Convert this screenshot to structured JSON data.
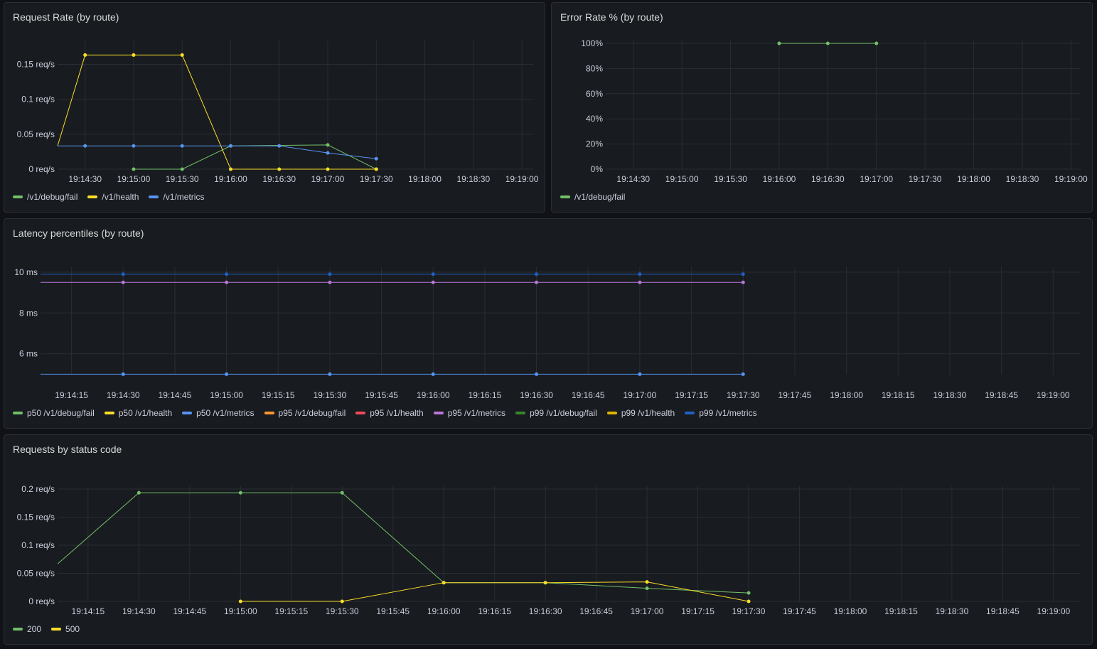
{
  "panels": [
    {
      "id": "req-rate",
      "title": "Request Rate (by route)",
      "chart_data": {
        "type": "line",
        "title": "Request Rate (by route)",
        "x_ticks": [
          "19:14:30",
          "19:15:00",
          "19:15:30",
          "19:16:00",
          "19:16:30",
          "19:17:00",
          "19:17:30",
          "19:18:00",
          "19:18:30",
          "19:19:00"
        ],
        "xlim": [
          "19:14:13",
          "19:19:07"
        ],
        "y_ticks": [
          {
            "v": 0,
            "label": "0 req/s"
          },
          {
            "v": 0.05,
            "label": "0.05 req/s"
          },
          {
            "v": 0.1,
            "label": "0.1 req/s"
          },
          {
            "v": 0.15,
            "label": "0.15 req/s"
          }
        ],
        "ylim": [
          0,
          0.18
        ],
        "series": [
          {
            "name": "/v1/debug/fail",
            "color": "#73bf69",
            "points": [
              [
                "19:15:00",
                0
              ],
              [
                "19:15:30",
                0
              ],
              [
                "19:16:00",
                0.0333
              ],
              [
                "19:17:00",
                0.0347
              ],
              [
                "19:17:30",
                0
              ]
            ]
          },
          {
            "name": "/v1/health",
            "color": "#fade2a",
            "points": [
              [
                "19:14:13",
                0.0333
              ],
              [
                "19:14:30",
                0.1633
              ],
              [
                "19:15:00",
                0.1633
              ],
              [
                "19:15:30",
                0.1633
              ],
              [
                "19:16:00",
                0
              ],
              [
                "19:16:30",
                0
              ],
              [
                "19:17:00",
                0
              ],
              [
                "19:17:30",
                0
              ]
            ]
          },
          {
            "name": "/v1/metrics",
            "color": "#5794f2",
            "points": [
              [
                "19:14:13",
                0.0333
              ],
              [
                "19:14:30",
                0.0333
              ],
              [
                "19:15:00",
                0.0333
              ],
              [
                "19:15:30",
                0.0333
              ],
              [
                "19:16:00",
                0.0333
              ],
              [
                "19:16:30",
                0.0333
              ],
              [
                "19:17:00",
                0.0233
              ],
              [
                "19:17:30",
                0.015
              ]
            ]
          }
        ]
      }
    },
    {
      "id": "err-rate",
      "title": "Error Rate % (by route)",
      "chart_data": {
        "type": "line",
        "title": "Error Rate % (by route)",
        "x_ticks": [
          "19:14:30",
          "19:15:00",
          "19:15:30",
          "19:16:00",
          "19:16:30",
          "19:17:00",
          "19:17:30",
          "19:18:00",
          "19:18:30",
          "19:19:00"
        ],
        "xlim": [
          "19:14:13",
          "19:19:06"
        ],
        "y_ticks": [
          {
            "v": 0,
            "label": "0%"
          },
          {
            "v": 20,
            "label": "20%"
          },
          {
            "v": 40,
            "label": "40%"
          },
          {
            "v": 60,
            "label": "60%"
          },
          {
            "v": 80,
            "label": "80%"
          },
          {
            "v": 100,
            "label": "100%"
          }
        ],
        "ylim": [
          0,
          100
        ],
        "series": [
          {
            "name": "/v1/debug/fail",
            "color": "#73bf69",
            "points": [
              [
                "19:16:00",
                100
              ],
              [
                "19:16:30",
                100
              ],
              [
                "19:17:00",
                100
              ]
            ]
          }
        ]
      }
    },
    {
      "id": "latency",
      "title": "Latency percentiles (by route)",
      "chart_data": {
        "type": "line",
        "title": "Latency percentiles (by route)",
        "x_ticks": [
          "19:14:15",
          "19:14:30",
          "19:14:45",
          "19:15:00",
          "19:15:15",
          "19:15:30",
          "19:15:45",
          "19:16:00",
          "19:16:15",
          "19:16:30",
          "19:16:45",
          "19:17:00",
          "19:17:15",
          "19:17:30",
          "19:17:45",
          "19:18:00",
          "19:18:15",
          "19:18:30",
          "19:18:45",
          "19:19:00"
        ],
        "xlim": [
          "19:14:06",
          "19:19:08"
        ],
        "y_ticks": [
          {
            "v": 6,
            "label": "6 ms"
          },
          {
            "v": 8,
            "label": "8 ms"
          },
          {
            "v": 10,
            "label": "10 ms"
          }
        ],
        "ylim": [
          4.98,
          10.1
        ],
        "series": [
          {
            "name": "p50 /v1/debug/fail",
            "color": "#73bf69",
            "points": []
          },
          {
            "name": "p50 /v1/health",
            "color": "#fade2a",
            "points": []
          },
          {
            "name": "p50 /v1/metrics",
            "color": "#5794f2",
            "points": [
              [
                "19:14:06",
                5
              ],
              [
                "19:14:30",
                5
              ],
              [
                "19:15:00",
                5
              ],
              [
                "19:15:30",
                5
              ],
              [
                "19:16:00",
                5
              ],
              [
                "19:16:30",
                5
              ],
              [
                "19:17:00",
                5
              ],
              [
                "19:17:30",
                5
              ]
            ]
          },
          {
            "name": "p95 /v1/debug/fail",
            "color": "#ff9830",
            "points": []
          },
          {
            "name": "p95 /v1/health",
            "color": "#f2495c",
            "points": []
          },
          {
            "name": "p95 /v1/metrics",
            "color": "#b877d9",
            "points": [
              [
                "19:14:06",
                9.5
              ],
              [
                "19:14:30",
                9.5
              ],
              [
                "19:15:00",
                9.5
              ],
              [
                "19:15:30",
                9.5
              ],
              [
                "19:16:00",
                9.5
              ],
              [
                "19:16:30",
                9.5
              ],
              [
                "19:17:00",
                9.5
              ],
              [
                "19:17:30",
                9.5
              ]
            ]
          },
          {
            "name": "p99 /v1/debug/fail",
            "color": "#37872d",
            "points": []
          },
          {
            "name": "p99 /v1/health",
            "color": "#e0b400",
            "points": []
          },
          {
            "name": "p99 /v1/metrics",
            "color": "#1f60c4",
            "points": [
              [
                "19:14:06",
                9.9
              ],
              [
                "19:14:30",
                9.9
              ],
              [
                "19:15:00",
                9.9
              ],
              [
                "19:15:30",
                9.9
              ],
              [
                "19:16:00",
                9.9
              ],
              [
                "19:16:30",
                9.9
              ],
              [
                "19:17:00",
                9.9
              ],
              [
                "19:17:30",
                9.9
              ]
            ]
          }
        ]
      }
    },
    {
      "id": "status-code",
      "title": "Requests by status code",
      "chart_data": {
        "type": "line",
        "title": "Requests by status code",
        "x_ticks": [
          "19:14:15",
          "19:14:30",
          "19:14:45",
          "19:15:00",
          "19:15:15",
          "19:15:30",
          "19:15:45",
          "19:16:00",
          "19:16:15",
          "19:16:30",
          "19:16:45",
          "19:17:00",
          "19:17:15",
          "19:17:30",
          "19:17:45",
          "19:18:00",
          "19:18:15",
          "19:18:30",
          "19:18:45",
          "19:19:00"
        ],
        "xlim": [
          "19:14:06",
          "19:19:08"
        ],
        "y_ticks": [
          {
            "v": 0,
            "label": "0 req/s"
          },
          {
            "v": 0.05,
            "label": "0.05 req/s"
          },
          {
            "v": 0.1,
            "label": "0.1 req/s"
          },
          {
            "v": 0.15,
            "label": "0.15 req/s"
          },
          {
            "v": 0.2,
            "label": "0.2 req/s"
          }
        ],
        "ylim": [
          0,
          0.2
        ],
        "series": [
          {
            "name": "200",
            "color": "#73bf69",
            "points": [
              [
                "19:14:06",
                0.0667
              ],
              [
                "19:14:30",
                0.1933
              ],
              [
                "19:15:00",
                0.1933
              ],
              [
                "19:15:30",
                0.1933
              ],
              [
                "19:16:00",
                0.0333
              ],
              [
                "19:16:30",
                0.0333
              ],
              [
                "19:17:00",
                0.0233
              ],
              [
                "19:17:30",
                0.015
              ]
            ]
          },
          {
            "name": "500",
            "color": "#fade2a",
            "points": [
              [
                "19:15:00",
                0
              ],
              [
                "19:15:30",
                0
              ],
              [
                "19:16:00",
                0.0333
              ],
              [
                "19:16:30",
                0.0333
              ],
              [
                "19:17:00",
                0.0347
              ],
              [
                "19:17:30",
                0
              ]
            ]
          }
        ]
      }
    }
  ]
}
